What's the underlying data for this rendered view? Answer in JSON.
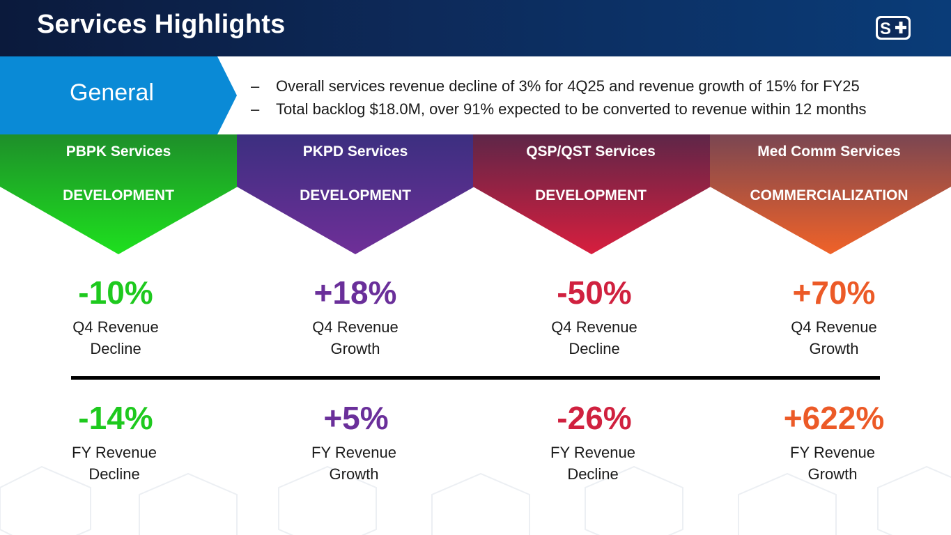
{
  "header": {
    "title": "Services Highlights",
    "logo_alt": "S+"
  },
  "general": {
    "label": "General",
    "bullets": [
      {
        "dash": "–",
        "text": "Overall services revenue decline of 3% for 4Q25 and revenue growth of 15% for FY25"
      },
      {
        "dash": "–",
        "text": "Total backlog $18.0M, over 91% expected to be converted to revenue within 12 months"
      }
    ]
  },
  "columns": [
    {
      "service": "PBPK Services",
      "phase": "DEVELOPMENT",
      "color": "#1ec91e",
      "top_color": "#1e8f2a",
      "bottom_color": "#1ee01e",
      "q4": {
        "value": "-10%",
        "label": "Q4 Revenue",
        "sub": "Decline"
      },
      "fy": {
        "value": "-14%",
        "label": "FY Revenue",
        "sub": "Decline"
      }
    },
    {
      "service": "PKPD Services",
      "phase": "DEVELOPMENT",
      "color": "#6a2f9a",
      "top_color": "#3c2f80",
      "bottom_color": "#6f2f98",
      "q4": {
        "value": "+18%",
        "label": "Q4 Revenue",
        "sub": "Growth"
      },
      "fy": {
        "value": "+5%",
        "label": "FY Revenue",
        "sub": "Growth"
      }
    },
    {
      "service": "QSP/QST Services",
      "phase": "DEVELOPMENT",
      "color": "#d0213f",
      "top_color": "#5e2648",
      "bottom_color": "#d81e3e",
      "q4": {
        "value": "-50%",
        "label": "Q4 Revenue",
        "sub": "Decline"
      },
      "fy": {
        "value": "-26%",
        "label": "FY Revenue",
        "sub": "Decline"
      }
    },
    {
      "service": "Med Comm Services",
      "phase": "COMMERCIALIZATION",
      "color": "#ec5a27",
      "top_color": "#7a4652",
      "bottom_color": "#f06228",
      "q4": {
        "value": "+70%",
        "label": "Q4 Revenue",
        "sub": "Growth"
      },
      "fy": {
        "value": "+622%",
        "label": "FY Revenue",
        "sub": "Growth"
      }
    }
  ],
  "colors": {
    "header_bg": "#0d2a5a",
    "general_bg": "#0a8ad6",
    "divider": "#000000"
  }
}
